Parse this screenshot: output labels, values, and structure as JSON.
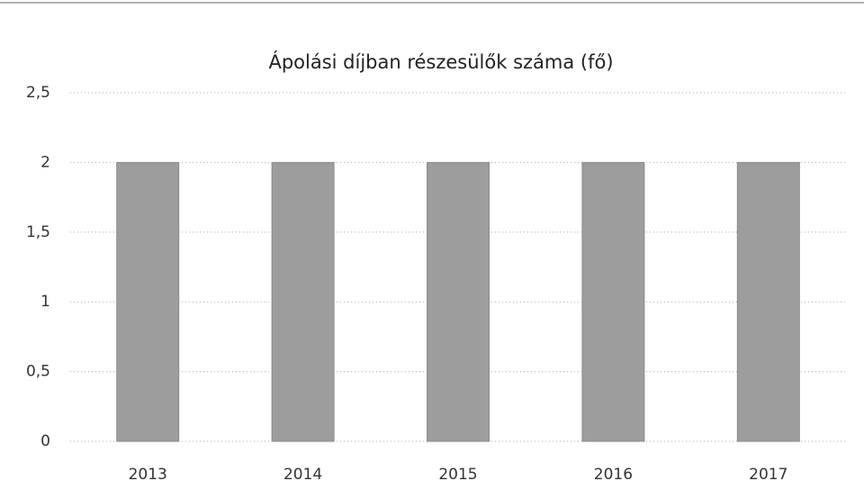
{
  "chart_data": {
    "type": "bar",
    "title": "Ápolási díjban részesülők száma (fő)",
    "categories": [
      "2013",
      "2014",
      "2015",
      "2016",
      "2017"
    ],
    "values": [
      2,
      2,
      2,
      2,
      2
    ],
    "color": "#9d9d9d",
    "ylim": [
      0,
      2.5
    ],
    "yticks": [
      0,
      {
        "value": 0.5,
        "label": "0,5"
      },
      1,
      {
        "value": 1.5,
        "label": "1,5"
      },
      2,
      {
        "value": 2.5,
        "label": "2,5"
      }
    ],
    "grid": true
  }
}
